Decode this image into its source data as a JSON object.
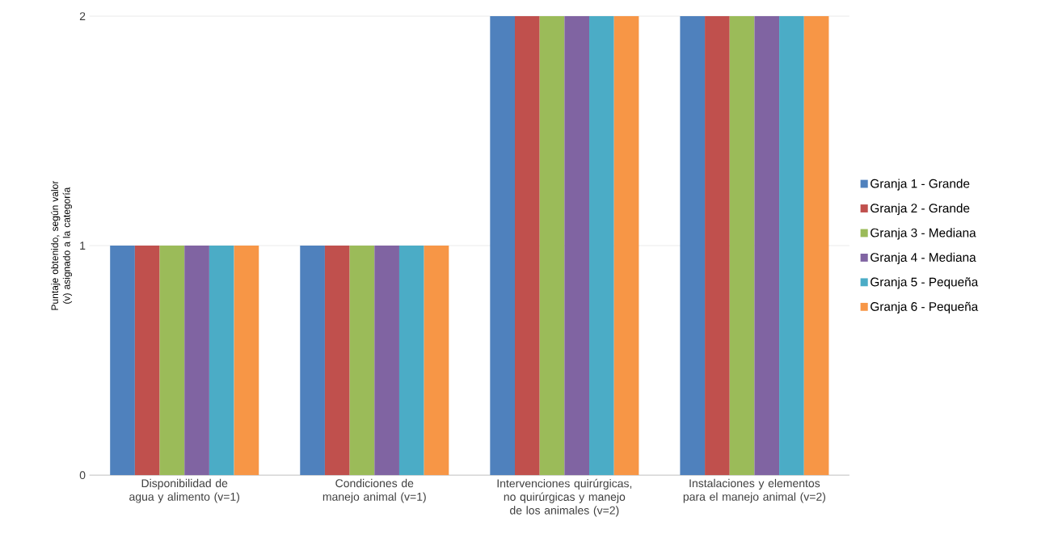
{
  "chart_data": {
    "type": "bar",
    "ylabel": "Puntaje obtenido, según valor (v) asignado a la categoría",
    "categories": [
      "Disponibilidad de agua y alimento (v=1)",
      "Condiciones de manejo animal (v=1)",
      "Intervenciones quirúrgicas, no quirúrgicas y manejo de los animales (v=2)",
      "Instalaciones y elementos para el manejo animal (v=2)"
    ],
    "series": [
      {
        "name": "Granja 1 - Grande",
        "color": "#4f81bd",
        "values": [
          1,
          1,
          2,
          2
        ]
      },
      {
        "name": "Granja 2 - Grande",
        "color": "#c0504d",
        "values": [
          1,
          1,
          2,
          2
        ]
      },
      {
        "name": "Granja 3 - Mediana",
        "color": "#9bbb59",
        "values": [
          1,
          1,
          2,
          2
        ]
      },
      {
        "name": "Granja 4 - Mediana",
        "color": "#8064a2",
        "values": [
          1,
          1,
          2,
          2
        ]
      },
      {
        "name": "Granja 5 - Pequeña",
        "color": "#4bacc6",
        "values": [
          1,
          1,
          2,
          2
        ]
      },
      {
        "name": "Granja 6 - Pequeña",
        "color": "#f79646",
        "values": [
          1,
          1,
          2,
          2
        ]
      }
    ],
    "ylim": [
      0,
      2
    ],
    "yticks": [
      0,
      1,
      2
    ],
    "grid": "y",
    "legend": "right"
  }
}
